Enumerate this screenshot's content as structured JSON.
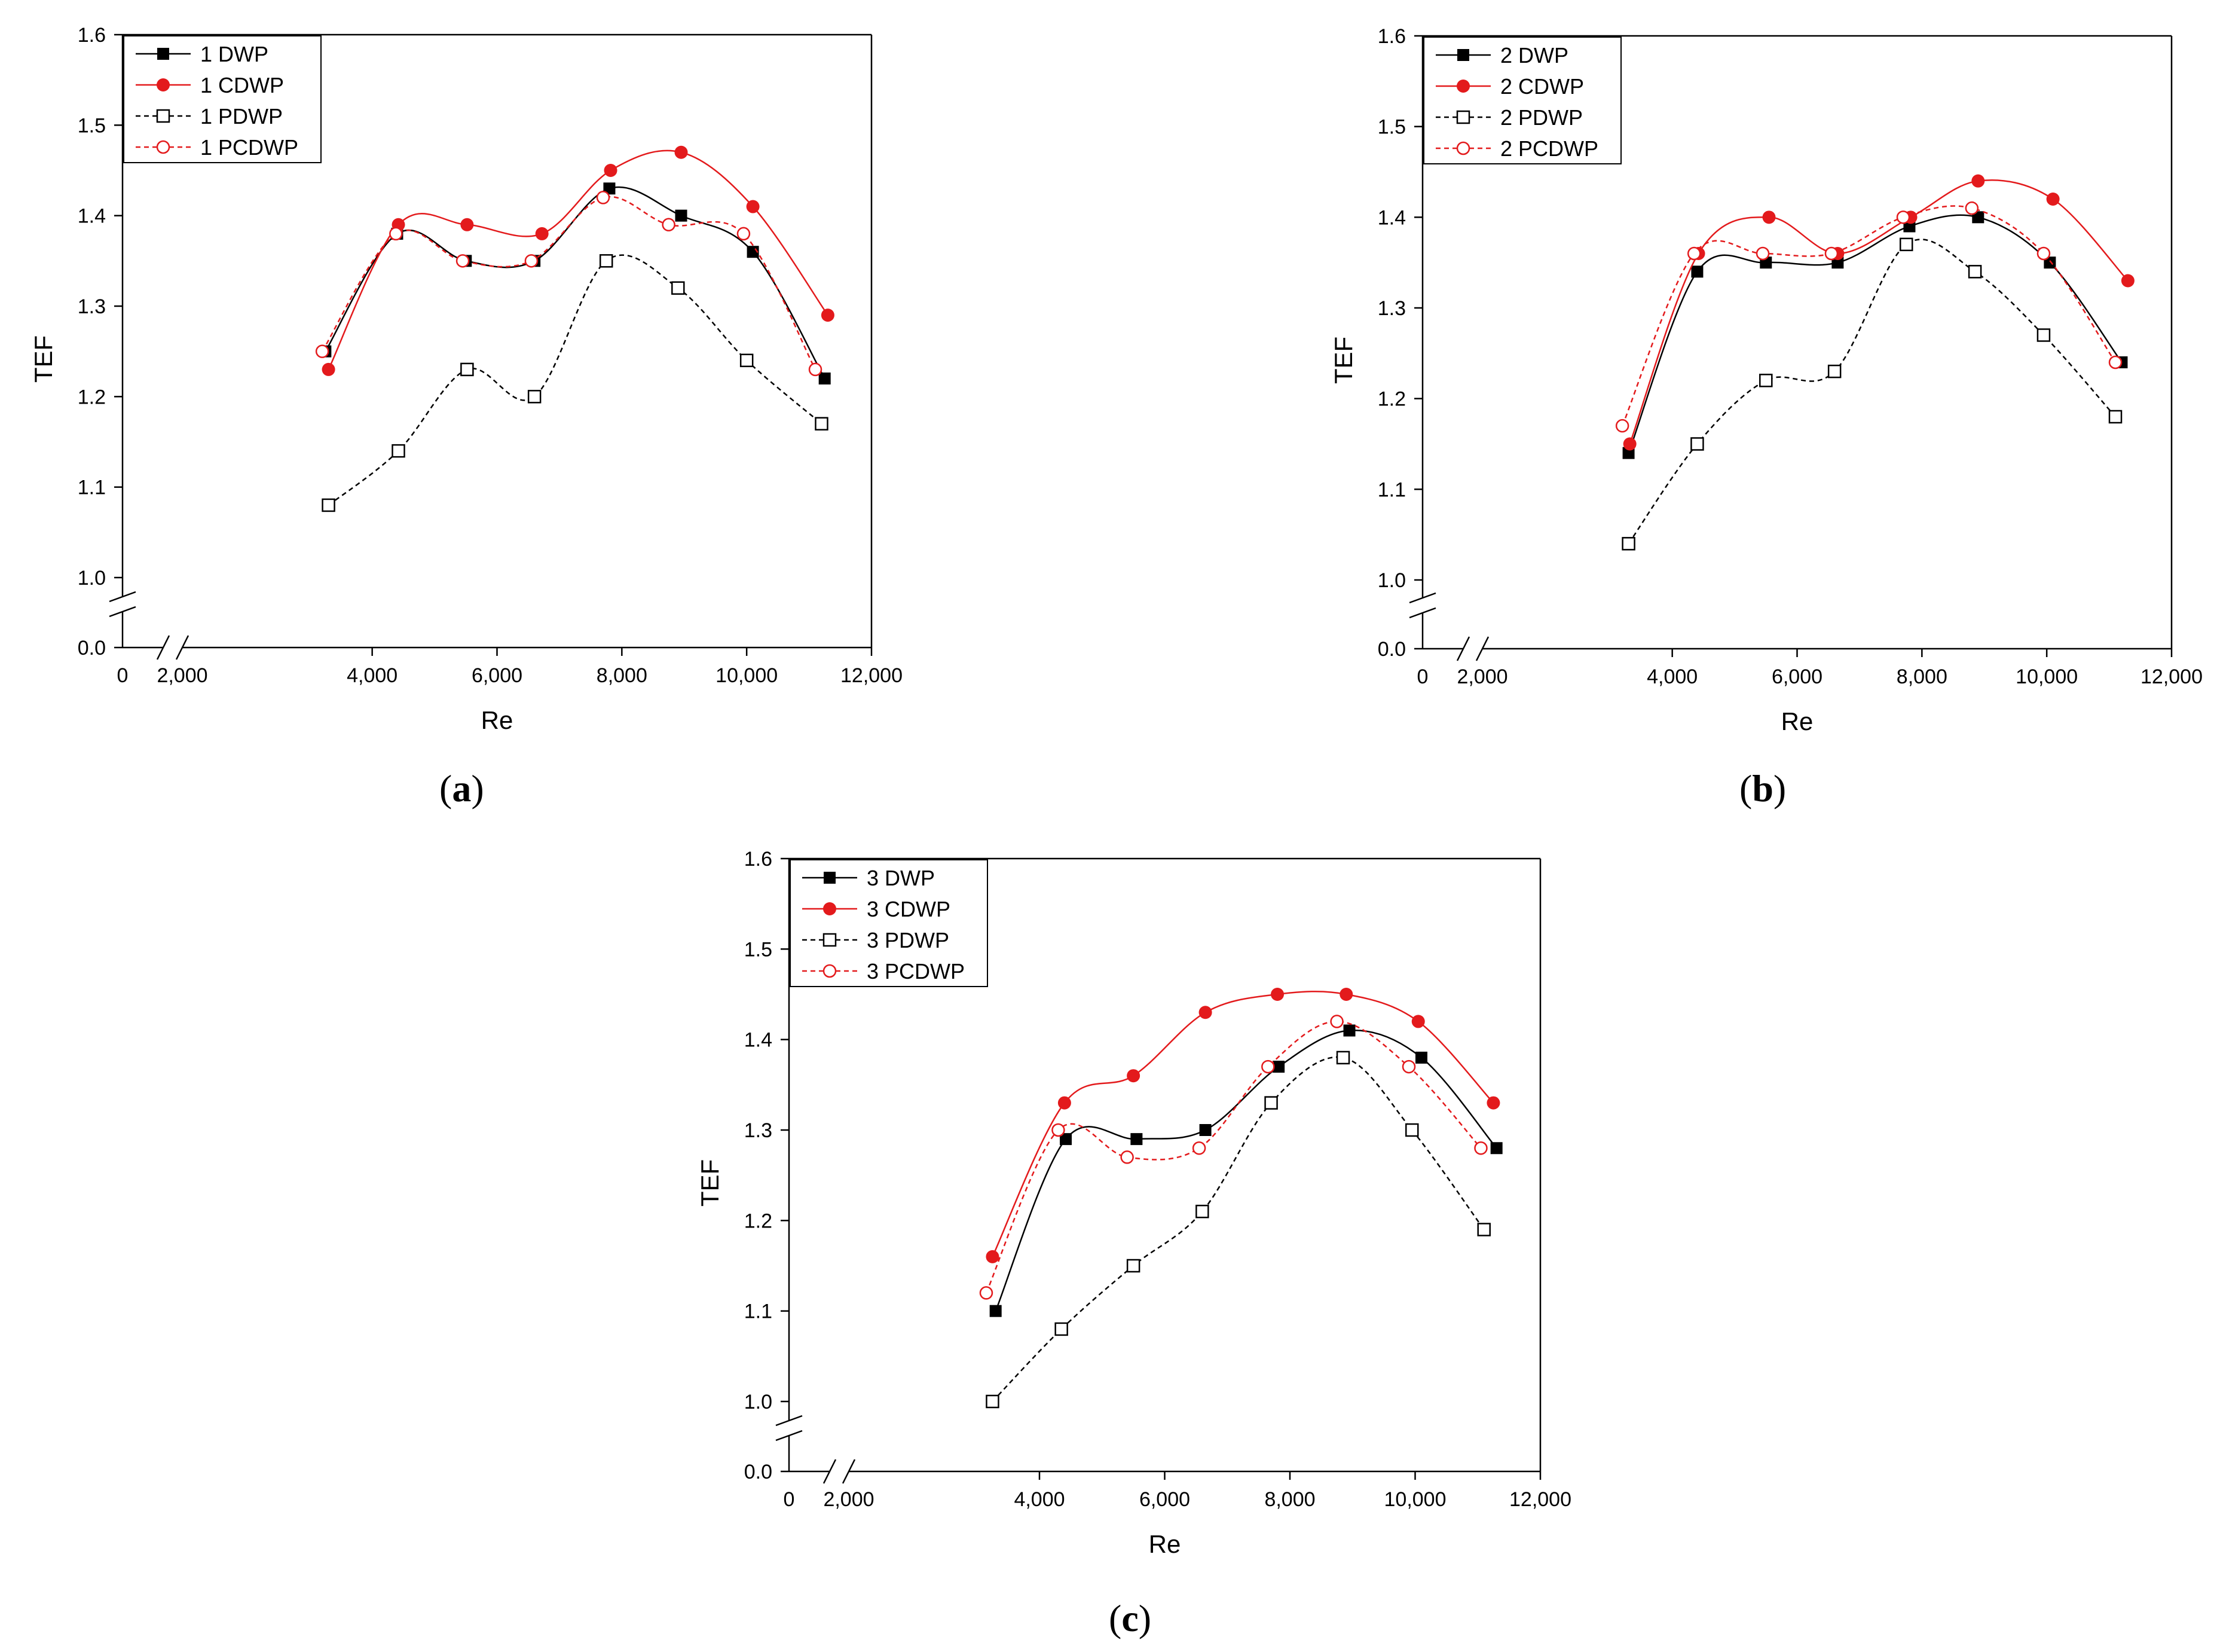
{
  "colors": {
    "black": "#000000",
    "red": "#e31a1c",
    "axis": "#000000"
  },
  "chart_data": [
    {
      "type": "line",
      "panel": "a",
      "panel_label": "a",
      "xlabel": "Re",
      "ylabel": "TEF",
      "xlim": [
        0,
        12000
      ],
      "ylim": [
        1.0,
        1.6
      ],
      "y_break_value": 0.0,
      "x_break_tick": "2,000",
      "xticks": [
        0,
        4000,
        6000,
        8000,
        10000,
        12000
      ],
      "xtick_labels": [
        "0",
        "4,000",
        "6,000",
        "8,000",
        "10,000",
        "12,000"
      ],
      "yticks": [
        1.0,
        1.1,
        1.2,
        1.3,
        1.4,
        1.5,
        1.6
      ],
      "ytick_labels": [
        "1.0",
        "1.1",
        "1.2",
        "1.3",
        "1.4",
        "1.5",
        "1.6"
      ],
      "y_break_label": "0.0",
      "legend_position": "top-left",
      "series": [
        {
          "name": "1 DWP",
          "color": "#000000",
          "marker": "filled-square",
          "dash": "solid",
          "x": [
            3250,
            4400,
            5500,
            6600,
            7800,
            8950,
            10100,
            11250
          ],
          "y": [
            1.25,
            1.38,
            1.35,
            1.35,
            1.43,
            1.4,
            1.36,
            1.22
          ]
        },
        {
          "name": "1 CDWP",
          "color": "#e31a1c",
          "marker": "filled-circle",
          "dash": "solid",
          "x": [
            3300,
            4420,
            5520,
            6720,
            7820,
            8950,
            10100,
            11300
          ],
          "y": [
            1.23,
            1.39,
            1.39,
            1.38,
            1.45,
            1.47,
            1.41,
            1.29
          ]
        },
        {
          "name": "1 PDWP",
          "color": "#000000",
          "marker": "open-square",
          "dash": "dashed",
          "x": [
            3300,
            4420,
            5520,
            6600,
            7750,
            8900,
            10000,
            11200
          ],
          "y": [
            1.08,
            1.14,
            1.23,
            1.2,
            1.35,
            1.32,
            1.24,
            1.17
          ]
        },
        {
          "name": "1 PCDWP",
          "color": "#e31a1c",
          "marker": "open-circle",
          "dash": "dashed",
          "x": [
            3200,
            4380,
            5450,
            6550,
            7700,
            8750,
            9950,
            11100
          ],
          "y": [
            1.25,
            1.38,
            1.35,
            1.35,
            1.42,
            1.39,
            1.38,
            1.23
          ]
        }
      ]
    },
    {
      "type": "line",
      "panel": "b",
      "panel_label": "b",
      "xlabel": "Re",
      "ylabel": "TEF",
      "xlim": [
        0,
        12000
      ],
      "ylim": [
        1.0,
        1.6
      ],
      "y_break_value": 0.0,
      "x_break_tick": "2,000",
      "xticks": [
        0,
        4000,
        6000,
        8000,
        10000,
        12000
      ],
      "xtick_labels": [
        "0",
        "4,000",
        "6,000",
        "8,000",
        "10,000",
        "12,000"
      ],
      "yticks": [
        1.0,
        1.1,
        1.2,
        1.3,
        1.4,
        1.5,
        1.6
      ],
      "ytick_labels": [
        "1.0",
        "1.1",
        "1.2",
        "1.3",
        "1.4",
        "1.5",
        "1.6"
      ],
      "y_break_label": "0.0",
      "legend_position": "top-left",
      "series": [
        {
          "name": "2 DWP",
          "color": "#000000",
          "marker": "filled-square",
          "dash": "solid",
          "x": [
            3300,
            4400,
            5500,
            6650,
            7800,
            8900,
            10050,
            11200
          ],
          "y": [
            1.14,
            1.34,
            1.35,
            1.35,
            1.39,
            1.4,
            1.35,
            1.24
          ]
        },
        {
          "name": "2 CDWP",
          "color": "#e31a1c",
          "marker": "filled-circle",
          "dash": "solid",
          "x": [
            3320,
            4420,
            5550,
            6650,
            7820,
            8900,
            10100,
            11300
          ],
          "y": [
            1.15,
            1.36,
            1.4,
            1.36,
            1.4,
            1.44,
            1.42,
            1.33
          ]
        },
        {
          "name": "2 PDWP",
          "color": "#000000",
          "marker": "open-square",
          "dash": "dashed",
          "x": [
            3300,
            4400,
            5500,
            6600,
            7750,
            8850,
            9950,
            11100
          ],
          "y": [
            1.04,
            1.15,
            1.22,
            1.23,
            1.37,
            1.34,
            1.27,
            1.18
          ]
        },
        {
          "name": "2 PCDWP",
          "color": "#e31a1c",
          "marker": "open-circle",
          "dash": "dashed",
          "x": [
            3200,
            4350,
            5450,
            6550,
            7700,
            8800,
            9950,
            11100
          ],
          "y": [
            1.17,
            1.36,
            1.36,
            1.36,
            1.4,
            1.41,
            1.36,
            1.24
          ]
        }
      ]
    },
    {
      "type": "line",
      "panel": "c",
      "panel_label": "c",
      "xlabel": "Re",
      "ylabel": "TEF",
      "xlim": [
        0,
        12000
      ],
      "ylim": [
        1.0,
        1.6
      ],
      "y_break_value": 0.0,
      "x_break_tick": "2,000",
      "xticks": [
        0,
        4000,
        6000,
        8000,
        10000,
        12000
      ],
      "xtick_labels": [
        "0",
        "4,000",
        "6,000",
        "8,000",
        "10,000",
        "12,000"
      ],
      "yticks": [
        1.0,
        1.1,
        1.2,
        1.3,
        1.4,
        1.5,
        1.6
      ],
      "ytick_labels": [
        "1.0",
        "1.1",
        "1.2",
        "1.3",
        "1.4",
        "1.5",
        "1.6"
      ],
      "y_break_label": "0.0",
      "legend_position": "top-left",
      "series": [
        {
          "name": "3 DWP",
          "color": "#000000",
          "marker": "filled-square",
          "dash": "solid",
          "x": [
            3300,
            4420,
            5550,
            6650,
            7820,
            8950,
            10100,
            11300
          ],
          "y": [
            1.1,
            1.29,
            1.29,
            1.3,
            1.37,
            1.41,
            1.38,
            1.28
          ]
        },
        {
          "name": "3 CDWP",
          "color": "#e31a1c",
          "marker": "filled-circle",
          "dash": "solid",
          "x": [
            3250,
            4400,
            5500,
            6650,
            7800,
            8900,
            10050,
            11250
          ],
          "y": [
            1.16,
            1.33,
            1.36,
            1.43,
            1.45,
            1.45,
            1.42,
            1.33
          ]
        },
        {
          "name": "3 PDWP",
          "color": "#000000",
          "marker": "open-square",
          "dash": "dashed",
          "x": [
            3250,
            4350,
            5500,
            6600,
            7700,
            8850,
            9950,
            11100
          ],
          "y": [
            1.0,
            1.08,
            1.15,
            1.21,
            1.33,
            1.38,
            1.3,
            1.19
          ]
        },
        {
          "name": "3 PCDWP",
          "color": "#e31a1c",
          "marker": "open-circle",
          "dash": "dashed",
          "x": [
            3150,
            4300,
            5400,
            6550,
            7650,
            8750,
            9900,
            11050
          ],
          "y": [
            1.12,
            1.3,
            1.27,
            1.28,
            1.37,
            1.42,
            1.37,
            1.28
          ]
        }
      ]
    }
  ]
}
